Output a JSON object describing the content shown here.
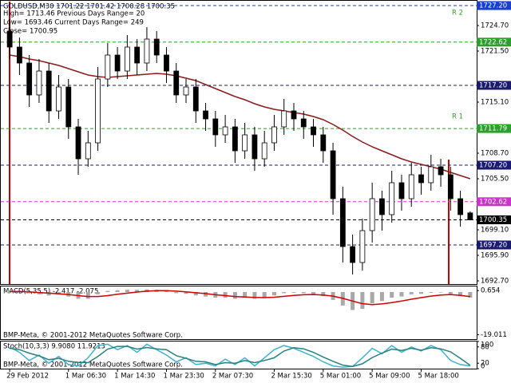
{
  "chart_data": [
    {
      "type": "candlestick",
      "title": "GOLDUSD,M30  1701.22 1701.42 1700.28 1700.35",
      "annotations": [
        "High= 1713.46   Previous Days Range= 20",
        "Low= 1693.46   Current Days Range= 249",
        "Close= 1700.95",
        "R 2",
        "R 1"
      ],
      "categories": [
        "29 Feb 2012",
        null,
        null,
        null,
        null,
        null,
        "1 Mar 06:30",
        null,
        null,
        null,
        null,
        "1 Mar 14:30",
        null,
        null,
        null,
        null,
        "1 Mar 23:30",
        null,
        null,
        null,
        null,
        "2 Mar 07:30",
        null,
        null,
        null,
        null,
        null,
        "2 Mar 15:30",
        null,
        null,
        null,
        null,
        "5 Mar 01:00",
        null,
        null,
        null,
        null,
        "5 Mar 09:00",
        null,
        null,
        null,
        null,
        "5 Mar 18:00",
        null,
        null,
        null,
        null,
        null
      ],
      "open": [
        1724,
        1722,
        1720,
        1716,
        1719,
        1714,
        1717,
        1712,
        1708,
        1710,
        1718,
        1721,
        1719,
        1722,
        1720,
        1723,
        1721,
        1719,
        1716,
        1717,
        1714,
        1713,
        1711,
        1712,
        1709,
        1711,
        1708,
        1710,
        1712,
        1714,
        1713,
        1712,
        1711,
        1709,
        1703,
        1697,
        1695,
        1699,
        1703,
        1701,
        1705,
        1703,
        1706,
        1705,
        1707,
        1706,
        1703,
        1701.22
      ],
      "high": [
        1725.5,
        1723.2,
        1721,
        1720.5,
        1720,
        1718.5,
        1718,
        1713,
        1711.5,
        1719.5,
        1722.5,
        1722,
        1723.5,
        1723,
        1724.5,
        1724,
        1722,
        1720,
        1718,
        1718,
        1715,
        1714,
        1713.5,
        1713,
        1712.5,
        1712,
        1711.5,
        1713.5,
        1715.5,
        1715,
        1714,
        1713,
        1712,
        1710,
        1704.5,
        1698.5,
        1700.5,
        1705,
        1704,
        1706.5,
        1706,
        1707.5,
        1707,
        1708.5,
        1708,
        1707,
        1704,
        1701.42
      ],
      "low": [
        1720.5,
        1718.5,
        1714.5,
        1715,
        1712.5,
        1713,
        1710.5,
        1706,
        1707,
        1709,
        1717,
        1718,
        1718,
        1718.5,
        1719,
        1720,
        1717.5,
        1715,
        1715,
        1712.5,
        1711.5,
        1709.5,
        1710,
        1707.5,
        1708,
        1706.5,
        1707,
        1709,
        1711,
        1711.5,
        1710.5,
        1709.5,
        1707.5,
        1701,
        1695,
        1693.5,
        1694,
        1697.5,
        1699,
        1700,
        1701.5,
        1702,
        1703.5,
        1704,
        1704.5,
        1701.5,
        1699.5,
        1700.28
      ],
      "close": [
        1722,
        1720,
        1716,
        1719,
        1714,
        1717,
        1712,
        1708,
        1710,
        1718,
        1721,
        1719,
        1722,
        1720,
        1723,
        1721,
        1719,
        1716,
        1717,
        1714,
        1713,
        1711,
        1712,
        1709,
        1711,
        1708,
        1710,
        1712,
        1714,
        1713,
        1712,
        1711,
        1709,
        1703,
        1697,
        1695,
        1699,
        1703,
        1701,
        1705,
        1703,
        1706,
        1705,
        1707,
        1706,
        1703,
        1701,
        1700.35
      ],
      "color_up": "#ffffff",
      "color_down": "#000000",
      "series": [
        {
          "color": "#8b1a1a",
          "values": [
            1721,
            1720.8,
            1720.5,
            1720.3,
            1720,
            1719.7,
            1719.3,
            1718.9,
            1718.5,
            1718.3,
            1718.2,
            1718.3,
            1718.4,
            1718.5,
            1718.6,
            1718.7,
            1718.6,
            1718.4,
            1718.1,
            1717.8,
            1717.3,
            1716.8,
            1716.3,
            1715.8,
            1715.4,
            1714.9,
            1714.5,
            1714.2,
            1714,
            1713.8,
            1713.6,
            1713.3,
            1712.9,
            1712.3,
            1711.6,
            1710.8,
            1710.1,
            1709.5,
            1709,
            1708.5,
            1708,
            1707.6,
            1707.3,
            1707,
            1706.7,
            1706.3,
            1705.9,
            1705.5
          ]
        }
      ],
      "ylim": [
        1692.3,
        1727.7
      ],
      "yticks": [
        {
          "value": 1692.7,
          "label": "1692.70"
        },
        {
          "value": 1695.9,
          "label": "1695.90"
        },
        {
          "value": 1699.1,
          "label": "1699.10"
        },
        {
          "value": 1705.5,
          "label": "1705.50"
        },
        {
          "value": 1708.7,
          "label": "1708.70"
        },
        {
          "value": 1715.1,
          "label": "1715.10"
        },
        {
          "value": 1721.5,
          "label": "1721.50"
        },
        {
          "value": 1724.7,
          "label": "1724.70"
        }
      ],
      "levels": [
        {
          "value": 1727.2,
          "label": "1727.20",
          "color": "#1a3fd0"
        },
        {
          "value": 1722.62,
          "label": "1722.62",
          "color": "#2e9e2e"
        },
        {
          "value": 1717.2,
          "label": "1717.20",
          "color": "#1a1a6e"
        },
        {
          "value": 1711.79,
          "label": "1711.79",
          "color": "#2e9e2e"
        },
        {
          "value": 1707.2,
          "label": "1707.20",
          "color": "#1a1a6e"
        },
        {
          "value": 1702.62,
          "label": "1702.62",
          "color": "#cc33cc"
        },
        {
          "value": 1700.35,
          "label": "1700.35",
          "color": "#000000"
        },
        {
          "value": 1697.2,
          "label": "1697.20",
          "color": "#1a1a6e"
        }
      ]
    },
    {
      "type": "macd",
      "title": "MACD(5,35,5) -2.417 -2.075",
      "footer": "BMP-Meta, © 2001-2012 MetaQuotes Software Corp.",
      "ylim": [
        -21,
        2.5
      ],
      "yticks": [
        0.654,
        -19.011
      ],
      "series": [
        {
          "style": "histogram",
          "color": "#a8a8a8",
          "values": [
            1,
            0.5,
            -0.5,
            -1,
            -1.5,
            -1,
            -2,
            -3,
            -3,
            -1,
            0.5,
            0.8,
            1,
            1,
            1.2,
            1,
            0.5,
            -0.5,
            -0.8,
            -1.5,
            -2,
            -2.5,
            -2.5,
            -3,
            -2.5,
            -3,
            -2.5,
            -1.5,
            -0.5,
            -0.3,
            -0.5,
            -1,
            -1.8,
            -3.5,
            -6,
            -8,
            -7.5,
            -5,
            -4,
            -2.5,
            -2,
            -1,
            -0.8,
            -0.3,
            -0.2,
            -0.8,
            -1.8,
            -2.417
          ]
        },
        {
          "style": "line",
          "color": "#cc0000",
          "values": [
            0.2,
            0.3,
            0.1,
            -0.2,
            -0.5,
            -0.8,
            -1.1,
            -1.6,
            -2,
            -2,
            -1.6,
            -1,
            -0.5,
            0,
            0.4,
            0.6,
            0.6,
            0.4,
            0.1,
            -0.3,
            -0.7,
            -1.2,
            -1.6,
            -2,
            -2.2,
            -2.4,
            -2.5,
            -2.3,
            -1.9,
            -1.5,
            -1.2,
            -1.1,
            -1.3,
            -1.8,
            -2.8,
            -4,
            -5.2,
            -5.6,
            -5.3,
            -4.7,
            -4,
            -3.2,
            -2.5,
            -1.8,
            -1.3,
            -1.1,
            -1.5,
            -2.075
          ]
        }
      ]
    },
    {
      "type": "line",
      "title": "Stoch(10,3,3) 9.9080 11.9213",
      "footer": "BMP-Meta, © 2001-2012 MetaQuotes Software Corp.",
      "ylim": [
        0,
        100
      ],
      "yticks": [
        0,
        20,
        80,
        100
      ],
      "series": [
        {
          "color": "#40b0d0",
          "values": [
            80,
            60,
            30,
            50,
            20,
            45,
            15,
            10,
            40,
            85,
            90,
            70,
            85,
            60,
            90,
            70,
            50,
            25,
            40,
            15,
            20,
            10,
            35,
            15,
            40,
            10,
            40,
            70,
            85,
            75,
            60,
            45,
            25,
            10,
            5,
            8,
            40,
            75,
            55,
            85,
            60,
            80,
            65,
            85,
            70,
            30,
            15,
            9.908
          ]
        },
        {
          "color": "#2a8080",
          "values": [
            75,
            70,
            57,
            47,
            33,
            38,
            27,
            23,
            22,
            45,
            72,
            82,
            82,
            72,
            78,
            73,
            70,
            48,
            38,
            27,
            25,
            15,
            22,
            20,
            30,
            22,
            30,
            40,
            65,
            77,
            73,
            60,
            43,
            27,
            13,
            8,
            18,
            41,
            57,
            72,
            67,
            75,
            68,
            77,
            73,
            62,
            38,
            11.9213
          ]
        }
      ]
    }
  ]
}
